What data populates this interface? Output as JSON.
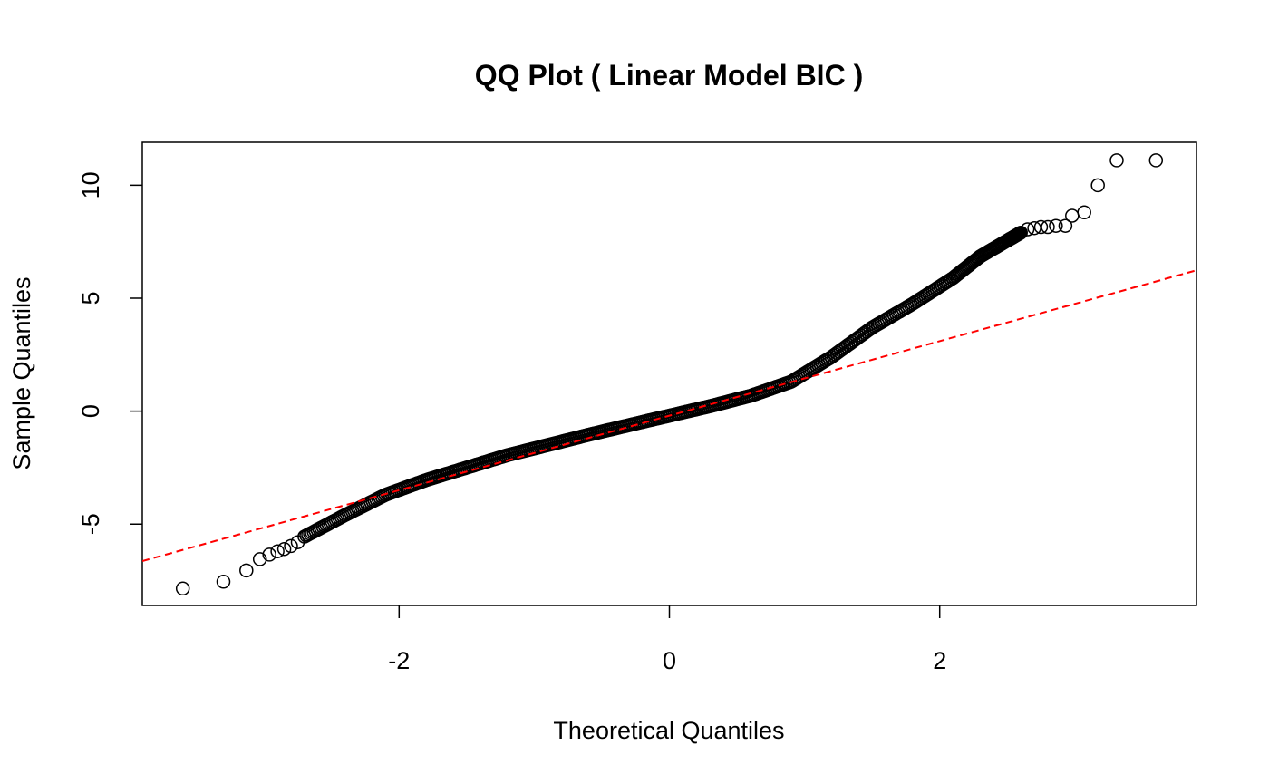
{
  "chart_data": {
    "type": "scatter",
    "title": "QQ Plot ( Linear Model BIC  )",
    "xlabel": "Theoretical Quantiles",
    "ylabel": "Sample Quantiles",
    "xlim": [
      -3.9,
      3.9
    ],
    "ylim": [
      -8.6,
      11.9
    ],
    "xticks": [
      -2,
      0,
      2
    ],
    "xtick_labels": [
      "-2",
      "0",
      "2"
    ],
    "yticks": [
      -5,
      0,
      5,
      10
    ],
    "ytick_labels": [
      "-5",
      "0",
      "5",
      "10"
    ],
    "grid": false,
    "legend": "none",
    "colors": {
      "points": "#000000",
      "reference_line": "#ff0000"
    },
    "reference_line": {
      "style": "dashed",
      "intercept": -0.2,
      "slope": 1.65
    },
    "quantile_curve": [
      [
        -2.7,
        -5.55
      ],
      [
        -2.4,
        -4.6
      ],
      [
        -2.1,
        -3.7
      ],
      [
        -1.8,
        -3.05
      ],
      [
        -1.5,
        -2.5
      ],
      [
        -1.2,
        -1.95
      ],
      [
        -0.9,
        -1.5
      ],
      [
        -0.6,
        -1.05
      ],
      [
        -0.3,
        -0.62
      ],
      [
        0.0,
        -0.2
      ],
      [
        0.3,
        0.22
      ],
      [
        0.6,
        0.68
      ],
      [
        0.9,
        1.3
      ],
      [
        1.2,
        2.4
      ],
      [
        1.5,
        3.7
      ],
      [
        1.8,
        4.75
      ],
      [
        2.1,
        5.9
      ],
      [
        2.3,
        6.85
      ],
      [
        2.5,
        7.55
      ],
      [
        2.6,
        7.9
      ]
    ],
    "tail_points": [
      [
        -3.6,
        -7.85
      ],
      [
        -3.3,
        -7.55
      ],
      [
        -3.13,
        -7.05
      ],
      [
        -3.03,
        -6.55
      ],
      [
        -2.96,
        -6.35
      ],
      [
        -2.9,
        -6.2
      ],
      [
        -2.85,
        -6.1
      ],
      [
        -2.8,
        -5.97
      ],
      [
        -2.75,
        -5.8
      ],
      [
        2.65,
        8.05
      ],
      [
        2.7,
        8.1
      ],
      [
        2.75,
        8.15
      ],
      [
        2.8,
        8.15
      ],
      [
        2.86,
        8.2
      ],
      [
        2.93,
        8.2
      ],
      [
        2.98,
        8.65
      ],
      [
        3.07,
        8.8
      ],
      [
        3.17,
        10.0
      ],
      [
        3.31,
        11.1
      ],
      [
        3.6,
        11.1
      ]
    ]
  }
}
